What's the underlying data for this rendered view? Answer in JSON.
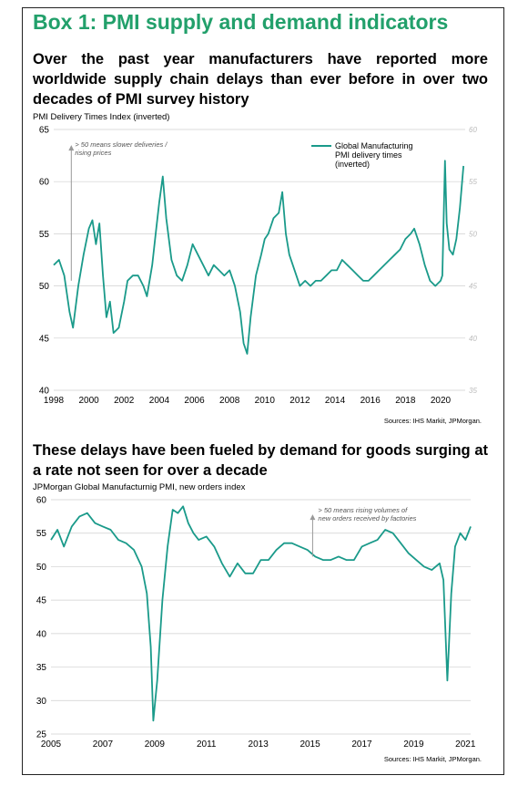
{
  "box_title": "Box 1: PMI supply and demand indicators",
  "chart1": {
    "headline": [
      "Over the past year manufacturers have reported more",
      "worldwide supply chain delays than ever before in over two",
      "decades of PMI survey history"
    ],
    "axis_title": "PMI Delivery Times Index (inverted)",
    "annotation": [
      "> 50 means slower deliveries /",
      "rising prices"
    ],
    "source": "Sources: IHS Markit, JPMorgan."
  },
  "chart2": {
    "headline": [
      "These delays have been fueled by demand for goods surging at",
      "a rate not seen for over a decade"
    ],
    "axis_title": "JPMorgan Global Manufacturnig PMI, new orders index",
    "annotation": [
      "> 50 means rising volumes of",
      "new orders received by factories"
    ],
    "source": "Sources: IHS Markit, JPMorgan."
  },
  "chart_data": [
    {
      "type": "line",
      "title": "PMI Delivery Times Index (inverted)",
      "color": "#1a9a8a",
      "xlim": [
        1998,
        2021.4
      ],
      "ylim": [
        40,
        65
      ],
      "yticks": [
        40,
        45,
        50,
        55,
        60,
        65
      ],
      "xticks": [
        1998,
        2000,
        2002,
        2004,
        2006,
        2008,
        2010,
        2012,
        2014,
        2016,
        2018,
        2020
      ],
      "right_ticks": [
        "60",
        "55",
        "50",
        "45",
        "40",
        "35"
      ],
      "grid": true,
      "legend_position": "top-right",
      "series": [
        {
          "name": "Global Manufacturing PMI delivery times (inverted)",
          "x": [
            1998.0,
            1998.3,
            1998.6,
            1998.9,
            1999.1,
            1999.4,
            1999.7,
            2000.0,
            2000.2,
            2000.4,
            2000.6,
            2000.8,
            2001.0,
            2001.2,
            2001.4,
            2001.7,
            2002.0,
            2002.2,
            2002.5,
            2002.8,
            2003.1,
            2003.3,
            2003.6,
            2003.8,
            2004.0,
            2004.2,
            2004.4,
            2004.7,
            2005.0,
            2005.3,
            2005.6,
            2005.9,
            2006.2,
            2006.5,
            2006.8,
            2007.1,
            2007.4,
            2007.7,
            2008.0,
            2008.3,
            2008.6,
            2008.8,
            2009.0,
            2009.2,
            2009.5,
            2009.8,
            2010.0,
            2010.2,
            2010.5,
            2010.8,
            2011.0,
            2011.2,
            2011.4,
            2011.7,
            2012.0,
            2012.3,
            2012.6,
            2012.9,
            2013.2,
            2013.5,
            2013.8,
            2014.1,
            2014.4,
            2014.7,
            2015.0,
            2015.3,
            2015.6,
            2015.9,
            2016.2,
            2016.5,
            2016.8,
            2017.1,
            2017.4,
            2017.7,
            2018.0,
            2018.3,
            2018.5,
            2018.8,
            2019.1,
            2019.4,
            2019.7,
            2020.0,
            2020.1,
            2020.25,
            2020.35,
            2020.5,
            2020.7,
            2020.9,
            2021.1,
            2021.3
          ],
          "y": [
            52.0,
            52.5,
            51.0,
            47.5,
            46.0,
            50.0,
            53.0,
            55.5,
            56.3,
            54.0,
            56.0,
            51.0,
            47.0,
            48.5,
            45.5,
            46.0,
            48.5,
            50.5,
            51.0,
            51.0,
            50.0,
            49.0,
            52.0,
            55.0,
            58.0,
            60.5,
            56.5,
            52.5,
            51.0,
            50.5,
            52.0,
            54.0,
            53.0,
            52.0,
            51.0,
            52.0,
            51.5,
            51.0,
            51.5,
            50.0,
            47.5,
            44.5,
            43.5,
            47.0,
            51.0,
            53.0,
            54.5,
            55.0,
            56.5,
            57.0,
            59.0,
            55.0,
            53.0,
            51.5,
            50.0,
            50.5,
            50.0,
            50.5,
            50.5,
            51.0,
            51.5,
            51.5,
            52.5,
            52.0,
            51.5,
            51.0,
            50.5,
            50.5,
            51.0,
            51.5,
            52.0,
            52.5,
            53.0,
            53.5,
            54.5,
            55.0,
            55.5,
            54.0,
            52.0,
            50.5,
            50.0,
            50.5,
            51.0,
            62.0,
            56.0,
            53.5,
            53.0,
            54.5,
            57.5,
            61.5
          ]
        }
      ]
    },
    {
      "type": "line",
      "title": "JPMorgan Global Manufacturnig PMI, new orders index",
      "color": "#1a9a8a",
      "xlim": [
        2005,
        2021.2
      ],
      "ylim": [
        25,
        60
      ],
      "yticks": [
        25,
        30,
        35,
        40,
        45,
        50,
        55,
        60
      ],
      "xticks": [
        2005,
        2007,
        2009,
        2011,
        2013,
        2015,
        2017,
        2019,
        2021
      ],
      "grid": true,
      "series": [
        {
          "name": "",
          "x": [
            2005.0,
            2005.25,
            2005.5,
            2005.8,
            2006.1,
            2006.4,
            2006.7,
            2007.0,
            2007.3,
            2007.6,
            2007.9,
            2008.2,
            2008.5,
            2008.7,
            2008.85,
            2008.95,
            2009.1,
            2009.3,
            2009.5,
            2009.7,
            2009.9,
            2010.1,
            2010.3,
            2010.5,
            2010.7,
            2011.0,
            2011.3,
            2011.6,
            2011.9,
            2012.2,
            2012.5,
            2012.8,
            2013.1,
            2013.4,
            2013.7,
            2014.0,
            2014.3,
            2014.6,
            2014.9,
            2015.2,
            2015.5,
            2015.8,
            2016.1,
            2016.4,
            2016.7,
            2017.0,
            2017.3,
            2017.6,
            2017.9,
            2018.2,
            2018.5,
            2018.8,
            2019.1,
            2019.4,
            2019.7,
            2020.0,
            2020.15,
            2020.3,
            2020.45,
            2020.6,
            2020.8,
            2021.0,
            2021.2
          ],
          "y": [
            54.0,
            55.5,
            53.0,
            56.0,
            57.5,
            58.0,
            56.5,
            56.0,
            55.5,
            54.0,
            53.5,
            52.5,
            50.0,
            46.0,
            38.0,
            27.0,
            33.0,
            45.0,
            53.0,
            58.5,
            58.0,
            59.0,
            56.5,
            55.0,
            54.0,
            54.5,
            53.0,
            50.5,
            48.5,
            50.5,
            49.0,
            49.0,
            51.0,
            51.0,
            52.5,
            53.5,
            53.5,
            53.0,
            52.5,
            51.5,
            51.0,
            51.0,
            51.5,
            51.0,
            51.0,
            53.0,
            53.5,
            54.0,
            55.5,
            55.0,
            53.5,
            52.0,
            51.0,
            50.0,
            49.5,
            50.5,
            48.0,
            33.0,
            46.0,
            53.0,
            55.0,
            54.0,
            56.0
          ]
        }
      ]
    }
  ]
}
